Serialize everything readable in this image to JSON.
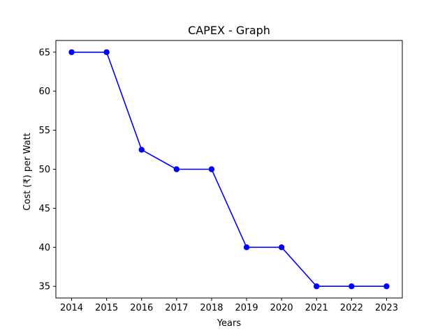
{
  "chart_data": {
    "type": "line",
    "title": "CAPEX - Graph",
    "xlabel": "Years",
    "ylabel": "Cost (₹) per Watt",
    "x": [
      2014,
      2015,
      2016,
      2017,
      2018,
      2019,
      2020,
      2021,
      2022,
      2023
    ],
    "series": [
      {
        "values": [
          65,
          65,
          52.5,
          50,
          50,
          40,
          40,
          35,
          35,
          35
        ],
        "color": "#0000ff",
        "marker": "circle"
      }
    ],
    "xlim": [
      2013.55,
      2023.45
    ],
    "ylim": [
      33.5,
      66.5
    ],
    "yticks": [
      35,
      40,
      45,
      50,
      55,
      60,
      65
    ],
    "grid": false,
    "legend": false
  }
}
